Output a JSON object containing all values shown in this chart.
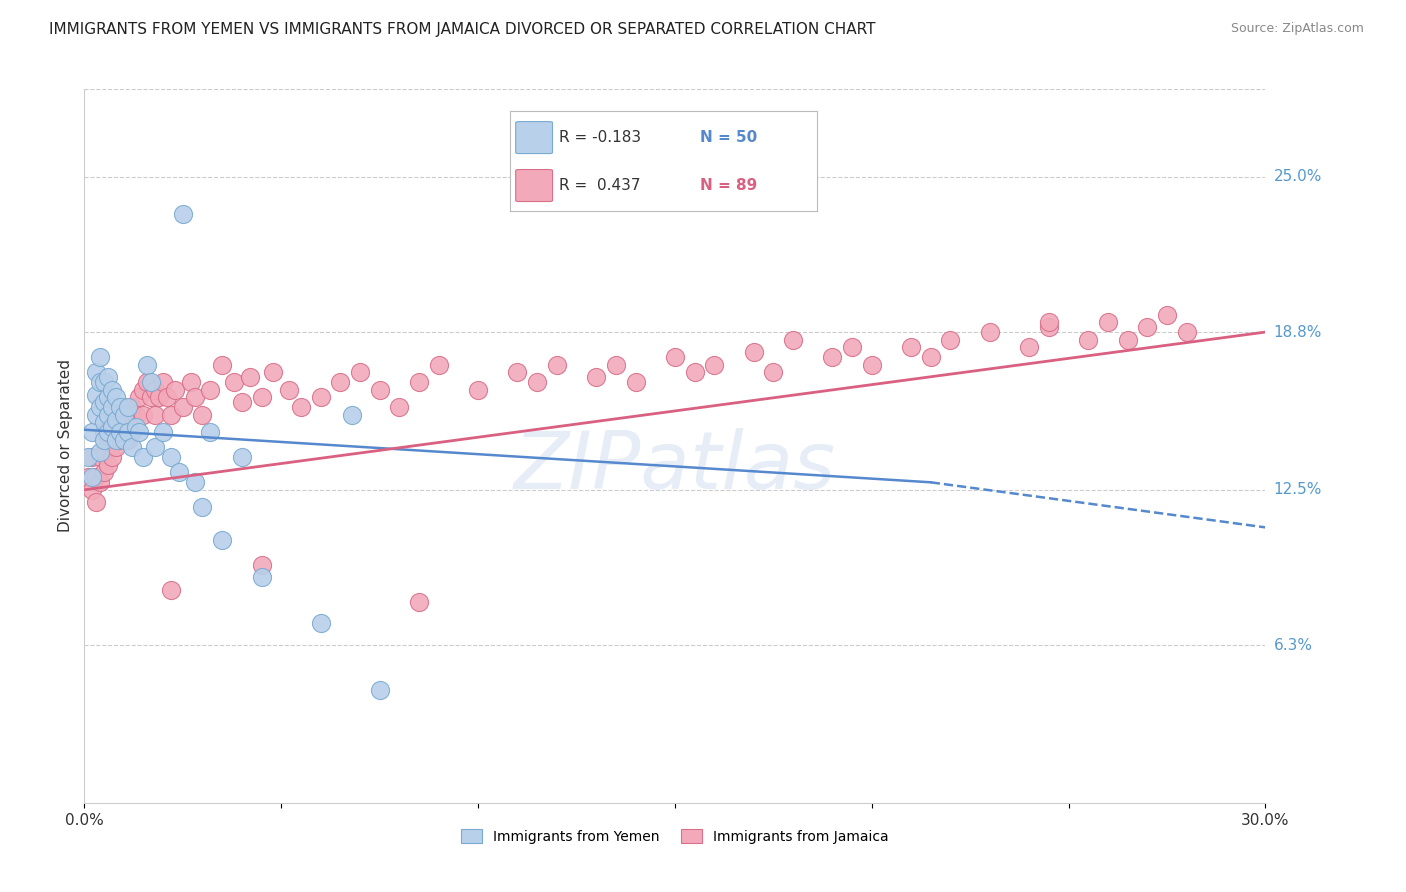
{
  "title": "IMMIGRANTS FROM YEMEN VS IMMIGRANTS FROM JAMAICA DIVORCED OR SEPARATED CORRELATION CHART",
  "source": "Source: ZipAtlas.com",
  "ylabel": "Divorced or Separated",
  "xmin": 0.0,
  "xmax": 0.3,
  "ymin": 0.0,
  "ymax": 0.285,
  "xticks": [
    0.0,
    0.05,
    0.1,
    0.15,
    0.2,
    0.25,
    0.3
  ],
  "xticklabels": [
    "0.0%",
    "",
    "",
    "",
    "",
    "",
    "30.0%"
  ],
  "ytick_positions": [
    0.063,
    0.125,
    0.188,
    0.25
  ],
  "ytick_labels": [
    "6.3%",
    "12.5%",
    "18.8%",
    "25.0%"
  ],
  "yemen_color": "#b8d0ea",
  "jamaica_color": "#f2aabb",
  "yemen_edge": "#7aaad0",
  "jamaica_edge": "#d9708a",
  "trend_yemen_color": "#5588cc",
  "trend_jamaica_color": "#d96080",
  "watermark": "ZIPatlas",
  "legend_r1": "R = -0.183",
  "legend_n1": "N = 50",
  "legend_r2": "R =  0.437",
  "legend_n2": "N = 89",
  "legend_r1_color": "#5588cc",
  "legend_n1_color": "#5588cc",
  "legend_r2_color": "#d96080",
  "legend_n2_color": "#d96080",
  "grid_color": "#cccccc",
  "background_color": "#ffffff",
  "title_fontsize": 11,
  "axis_label_fontsize": 11,
  "tick_fontsize": 11,
  "source_fontsize": 9,
  "yemen_x": [
    0.001,
    0.002,
    0.002,
    0.003,
    0.003,
    0.003,
    0.004,
    0.004,
    0.004,
    0.004,
    0.005,
    0.005,
    0.005,
    0.005,
    0.006,
    0.006,
    0.006,
    0.006,
    0.007,
    0.007,
    0.007,
    0.008,
    0.008,
    0.008,
    0.009,
    0.009,
    0.01,
    0.01,
    0.011,
    0.011,
    0.012,
    0.013,
    0.014,
    0.015,
    0.016,
    0.017,
    0.018,
    0.02,
    0.022,
    0.024,
    0.025,
    0.028,
    0.03,
    0.032,
    0.035,
    0.04,
    0.045,
    0.06,
    0.068,
    0.075
  ],
  "yemen_y": [
    0.138,
    0.148,
    0.13,
    0.155,
    0.163,
    0.172,
    0.14,
    0.158,
    0.168,
    0.178,
    0.145,
    0.152,
    0.16,
    0.168,
    0.148,
    0.155,
    0.162,
    0.17,
    0.15,
    0.158,
    0.165,
    0.145,
    0.153,
    0.162,
    0.148,
    0.158,
    0.145,
    0.155,
    0.148,
    0.158,
    0.142,
    0.15,
    0.148,
    0.138,
    0.175,
    0.168,
    0.142,
    0.148,
    0.138,
    0.132,
    0.235,
    0.128,
    0.118,
    0.148,
    0.105,
    0.138,
    0.09,
    0.072,
    0.155,
    0.045
  ],
  "jamaica_x": [
    0.001,
    0.002,
    0.002,
    0.003,
    0.003,
    0.004,
    0.004,
    0.005,
    0.005,
    0.005,
    0.006,
    0.006,
    0.007,
    0.007,
    0.008,
    0.008,
    0.009,
    0.009,
    0.01,
    0.01,
    0.011,
    0.011,
    0.012,
    0.012,
    0.013,
    0.014,
    0.015,
    0.015,
    0.016,
    0.017,
    0.018,
    0.018,
    0.019,
    0.02,
    0.021,
    0.022,
    0.023,
    0.025,
    0.027,
    0.028,
    0.03,
    0.032,
    0.035,
    0.038,
    0.04,
    0.042,
    0.045,
    0.048,
    0.052,
    0.055,
    0.06,
    0.065,
    0.07,
    0.075,
    0.08,
    0.085,
    0.09,
    0.1,
    0.11,
    0.115,
    0.12,
    0.13,
    0.14,
    0.15,
    0.155,
    0.16,
    0.17,
    0.175,
    0.18,
    0.19,
    0.195,
    0.2,
    0.21,
    0.215,
    0.22,
    0.23,
    0.24,
    0.245,
    0.255,
    0.26,
    0.265,
    0.27,
    0.275,
    0.28,
    0.245,
    0.135,
    0.085,
    0.045,
    0.022
  ],
  "jamaica_y": [
    0.13,
    0.125,
    0.138,
    0.12,
    0.13,
    0.128,
    0.138,
    0.132,
    0.14,
    0.148,
    0.135,
    0.145,
    0.138,
    0.148,
    0.142,
    0.152,
    0.145,
    0.155,
    0.148,
    0.158,
    0.145,
    0.155,
    0.148,
    0.158,
    0.155,
    0.162,
    0.165,
    0.155,
    0.168,
    0.162,
    0.165,
    0.155,
    0.162,
    0.168,
    0.162,
    0.155,
    0.165,
    0.158,
    0.168,
    0.162,
    0.155,
    0.165,
    0.175,
    0.168,
    0.16,
    0.17,
    0.162,
    0.172,
    0.165,
    0.158,
    0.162,
    0.168,
    0.172,
    0.165,
    0.158,
    0.168,
    0.175,
    0.165,
    0.172,
    0.168,
    0.175,
    0.17,
    0.168,
    0.178,
    0.172,
    0.175,
    0.18,
    0.172,
    0.185,
    0.178,
    0.182,
    0.175,
    0.182,
    0.178,
    0.185,
    0.188,
    0.182,
    0.19,
    0.185,
    0.192,
    0.185,
    0.19,
    0.195,
    0.188,
    0.192,
    0.175,
    0.08,
    0.095,
    0.085
  ],
  "trend_yemen_x0": 0.0,
  "trend_yemen_x_solid_end": 0.215,
  "trend_yemen_x_dashed_end": 0.3,
  "trend_yemen_y0": 0.149,
  "trend_yemen_y_solid_end": 0.128,
  "trend_yemen_y_dashed_end": 0.11,
  "trend_jamaica_x0": 0.0,
  "trend_jamaica_x1": 0.3,
  "trend_jamaica_y0": 0.125,
  "trend_jamaica_y1": 0.188
}
